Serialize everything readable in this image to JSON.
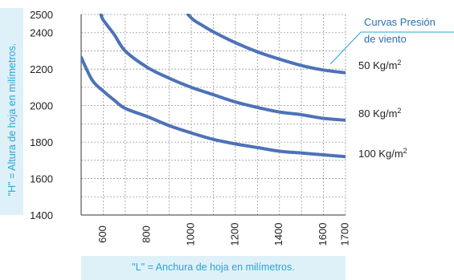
{
  "chart_data": {
    "type": "line",
    "title": "",
    "xlabel": "\"L\"  =  Anchura de hoja en milímetros.",
    "ylabel": "\"H\"  =  Altura de hoja en milímetros.",
    "x_ticks": [
      600,
      800,
      1000,
      1200,
      1400,
      1600,
      1700
    ],
    "y_ticks": [
      1400,
      1600,
      1800,
      2000,
      2200,
      2400,
      2500
    ],
    "xlim": [
      500,
      1700
    ],
    "ylim": [
      1400,
      2500
    ],
    "grid": true,
    "annotation": {
      "line1": "Curvas Presión",
      "line2": "de viento"
    },
    "series": [
      {
        "name": "50 Kg/m²",
        "label_base": "50 Kg/m",
        "label_sup": "2",
        "x": [
          985,
          1010,
          1050,
          1100,
          1200,
          1300,
          1400,
          1500,
          1600,
          1700
        ],
        "y": [
          2500,
          2470,
          2440,
          2405,
          2345,
          2295,
          2255,
          2220,
          2195,
          2180
        ]
      },
      {
        "name": "80 Kg/m²",
        "label_base": "80 Kg/m",
        "label_sup": "2",
        "x": [
          590,
          600,
          650,
          700,
          800,
          900,
          1000,
          1100,
          1200,
          1300,
          1400,
          1500,
          1600,
          1700
        ],
        "y": [
          2500,
          2470,
          2390,
          2300,
          2210,
          2150,
          2100,
          2060,
          2020,
          1990,
          1965,
          1950,
          1930,
          1920
        ]
      },
      {
        "name": "100 Kg/m²",
        "label_base": "100 Kg/m",
        "label_sup": "2",
        "x": [
          500,
          550,
          600,
          650,
          700,
          800,
          900,
          1000,
          1100,
          1200,
          1300,
          1400,
          1500,
          1600,
          1700
        ],
        "y": [
          2265,
          2140,
          2080,
          2030,
          1985,
          1940,
          1890,
          1850,
          1815,
          1790,
          1770,
          1750,
          1740,
          1730,
          1720
        ]
      }
    ],
    "colors": {
      "line": "#4d72b8",
      "grid": "#9a9a9a",
      "axis": "#333333",
      "label": "#2aa3d6",
      "label_bg": "#dff1f8",
      "annotation_text": "#2a6fae"
    }
  }
}
